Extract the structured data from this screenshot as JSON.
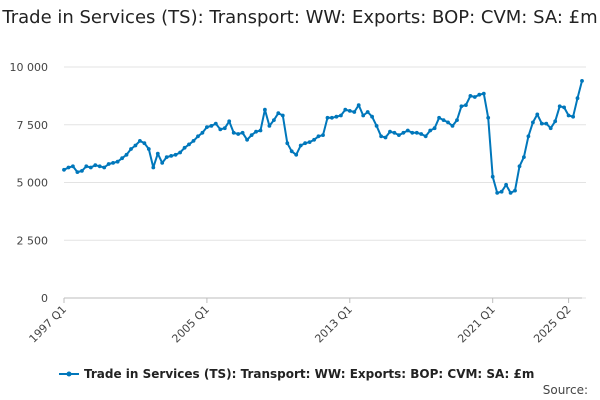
{
  "chart_data": {
    "type": "line",
    "title": "Trade in Services (TS): Transport: WW: Exports: BOP: CVM: SA: £m",
    "xlabel": "",
    "ylabel": "",
    "ylim": [
      0,
      10000
    ],
    "yticks": [
      0,
      2500,
      5000,
      7500,
      10000
    ],
    "ytick_labels": [
      "0",
      "2 500",
      "5 000",
      "7 500",
      "10 000"
    ],
    "xticks": [
      "1997 Q1",
      "2005 Q1",
      "2013 Q1",
      "2021 Q1",
      "2025 Q2"
    ],
    "legend_position": "bottom",
    "grid": true,
    "series_color": "#0077bb",
    "x_start": "1997 Q1",
    "series": [
      {
        "name": "Trade in Services (TS): Transport: WW: Exports: BOP: CVM: SA: £m",
        "values": [
          5550,
          5650,
          5700,
          5450,
          5500,
          5700,
          5650,
          5750,
          5700,
          5650,
          5800,
          5850,
          5900,
          6050,
          6200,
          6450,
          6600,
          6800,
          6700,
          6450,
          5650,
          6250,
          5850,
          6100,
          6150,
          6200,
          6300,
          6500,
          6650,
          6800,
          7000,
          7150,
          7400,
          7450,
          7550,
          7300,
          7350,
          7650,
          7150,
          7100,
          7150,
          6850,
          7050,
          7200,
          7250,
          8150,
          7450,
          7700,
          8000,
          7900,
          6700,
          6350,
          6200,
          6600,
          6700,
          6750,
          6850,
          7000,
          7050,
          7800,
          7800,
          7850,
          7900,
          8150,
          8100,
          8050,
          8350,
          7900,
          8050,
          7850,
          7450,
          7000,
          6950,
          7200,
          7150,
          7050,
          7150,
          7250,
          7150,
          7150,
          7100,
          7000,
          7250,
          7350,
          7800,
          7700,
          7600,
          7450,
          7700,
          8300,
          8350,
          8750,
          8700,
          8800,
          8850,
          7800,
          5250,
          4550,
          4600,
          4900,
          4550,
          4650,
          5700,
          6100,
          7000,
          7600,
          7950,
          7550,
          7550,
          7350,
          7650,
          8300,
          8250,
          7900,
          7850,
          8650,
          9400
        ]
      }
    ]
  },
  "legend": {
    "label": "Trade in Services (TS): Transport: WW: Exports: BOP: CVM: SA: £m"
  },
  "footer": {
    "source_label": "Source:"
  }
}
